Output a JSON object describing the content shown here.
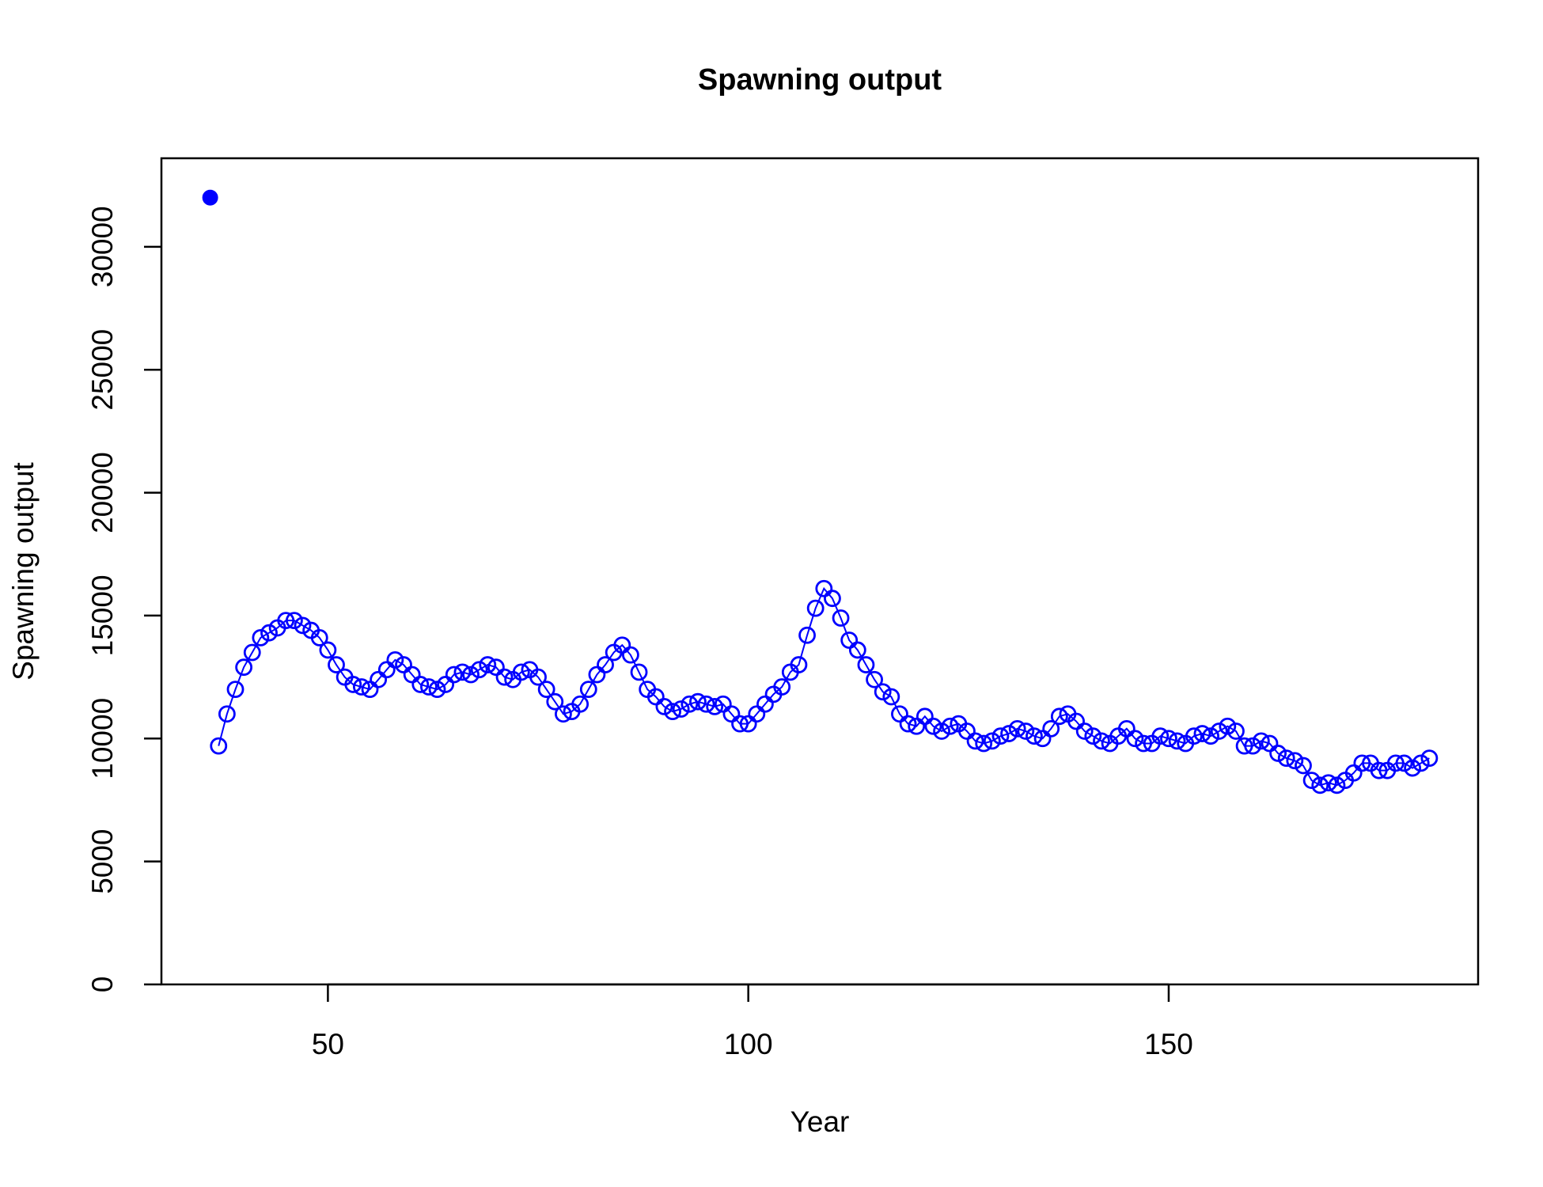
{
  "chart_data": {
    "type": "line",
    "title": "Spawning output",
    "x_label": "Year",
    "y_label": "Spawning output",
    "xlim": [
      30.2,
      186.8
    ],
    "xticks": [
      50,
      100,
      150
    ],
    "ylim": [
      0,
      33600
    ],
    "yticks": [
      0,
      5000,
      10000,
      15000,
      20000,
      25000,
      30000
    ],
    "grid": false,
    "series": [
      {
        "color": "#0000ff",
        "marker": "filled",
        "line": false,
        "x": [
          36
        ],
        "values": [
          32000
        ]
      },
      {
        "color": "#0000ff",
        "marker": "open",
        "line": true,
        "x": [
          37,
          38,
          39,
          40,
          41,
          42,
          43,
          44,
          45,
          46,
          47,
          48,
          49,
          50,
          51,
          52,
          53,
          54,
          55,
          56,
          57,
          58,
          59,
          60,
          61,
          62,
          63,
          64,
          65,
          66,
          67,
          68,
          69,
          70,
          71,
          72,
          73,
          74,
          75,
          76,
          77,
          78,
          79,
          80,
          81,
          82,
          83,
          84,
          85,
          86,
          87,
          88,
          89,
          90,
          91,
          92,
          93,
          94,
          95,
          96,
          97,
          98,
          99,
          100,
          101,
          102,
          103,
          104,
          105,
          106,
          107,
          108,
          109,
          110,
          111,
          112,
          113,
          114,
          115,
          116,
          117,
          118,
          119,
          120,
          121,
          122,
          123,
          124,
          125,
          126,
          127,
          128,
          129,
          130,
          131,
          132,
          133,
          134,
          135,
          136,
          137,
          138,
          139,
          140,
          141,
          142,
          143,
          144,
          145,
          146,
          147,
          148,
          149,
          150,
          151,
          152,
          153,
          154,
          155,
          156,
          157,
          158,
          159,
          160,
          161,
          162,
          163,
          164,
          165,
          166,
          167,
          168,
          169,
          170,
          171,
          172,
          173,
          174,
          175,
          176,
          177,
          178,
          179,
          180,
          181
        ],
        "values": [
          9700,
          11000,
          12000,
          12900,
          13500,
          14100,
          14300,
          14500,
          14800,
          14800,
          14600,
          14400,
          14100,
          13600,
          13000,
          12500,
          12200,
          12100,
          12000,
          12400,
          12800,
          13200,
          13000,
          12600,
          12200,
          12100,
          12000,
          12200,
          12600,
          12700,
          12600,
          12800,
          13000,
          12900,
          12500,
          12400,
          12700,
          12800,
          12500,
          12000,
          11500,
          11000,
          11100,
          11400,
          12000,
          12600,
          13000,
          13500,
          13800,
          13400,
          12700,
          12000,
          11700,
          11300,
          11100,
          11200,
          11400,
          11500,
          11400,
          11300,
          11400,
          11000,
          10600,
          10600,
          11000,
          11400,
          11800,
          12100,
          12700,
          13000,
          14200,
          15300,
          16100,
          15700,
          14900,
          14000,
          13600,
          13000,
          12400,
          11900,
          11700,
          11000,
          10600,
          10500,
          10900,
          10500,
          10300,
          10500,
          10600,
          10300,
          9900,
          9800,
          9900,
          10100,
          10200,
          10400,
          10300,
          10100,
          10000,
          10400,
          10900,
          11000,
          10700,
          10300,
          10100,
          9900,
          9800,
          10100,
          10400,
          10000,
          9800,
          9800,
          10100,
          10000,
          9900,
          9800,
          10100,
          10200,
          10100,
          10300,
          10500,
          10300,
          9700,
          9700,
          9900,
          9800,
          9400,
          9200,
          9100,
          8900,
          8300,
          8100,
          8200,
          8100,
          8300,
          8600,
          9000,
          9000,
          8700,
          8700,
          9000,
          9000,
          8800,
          9000,
          9200
        ]
      }
    ]
  }
}
